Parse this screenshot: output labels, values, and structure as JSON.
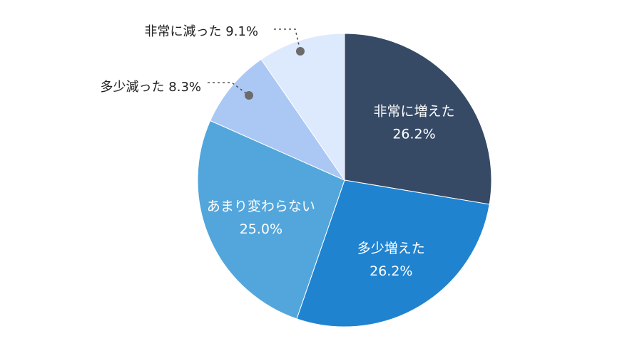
{
  "chart_data": {
    "type": "pie",
    "start": "12 o'clock",
    "direction": "clockwise",
    "slices": [
      {
        "label": "非常に増えた",
        "value": 26.2,
        "value_label": "26.2%",
        "color": "#364a66",
        "label_position": "inside"
      },
      {
        "label": "多少増えた",
        "value": 26.2,
        "value_label": "26.2%",
        "color": "#1f83d0",
        "label_position": "inside"
      },
      {
        "label": "あまり変わらない",
        "value": 25.0,
        "value_label": "25.0%",
        "color": "#52a6db",
        "label_position": "inside"
      },
      {
        "label": "多少減った",
        "value": 8.3,
        "value_label": "8.3%",
        "color": "#abc8f4",
        "label_position": "outside-left"
      },
      {
        "label": "非常に減った",
        "value": 9.1,
        "value_label": "9.1%",
        "color": "#dde9fc",
        "label_position": "outside-left"
      }
    ]
  }
}
